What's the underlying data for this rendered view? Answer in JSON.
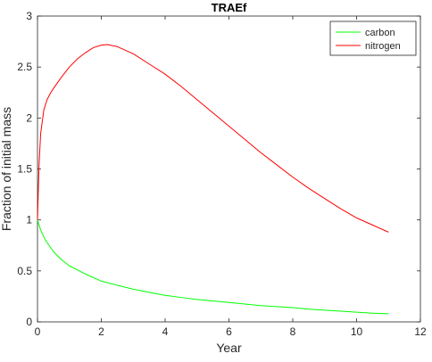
{
  "chart_data": {
    "type": "line",
    "title": "TRAEf",
    "xlabel": "Year",
    "ylabel": "Fraction of initial mass",
    "xlim": [
      0,
      12
    ],
    "ylim": [
      0,
      3
    ],
    "xticks": [
      0,
      2,
      4,
      6,
      8,
      10,
      12
    ],
    "xtick_labels": [
      "0",
      "2",
      "4",
      "6",
      "8",
      "10",
      "12"
    ],
    "yticks": [
      0,
      0.5,
      1,
      1.5,
      2,
      2.5,
      3
    ],
    "ytick_labels": [
      "0",
      "0.5",
      "1",
      "1.5",
      "2",
      "2.5",
      "3"
    ],
    "grid": false,
    "legend": {
      "placement": "top-right"
    },
    "series": [
      {
        "name": "carbon",
        "color": "#00ff00",
        "x": [
          0,
          0.1,
          0.25,
          0.5,
          0.75,
          1,
          1.5,
          2,
          2.5,
          3,
          3.5,
          4,
          4.5,
          5,
          5.5,
          6,
          6.5,
          7,
          7.5,
          8,
          8.5,
          9,
          9.5,
          10,
          10.5,
          11
        ],
        "y": [
          1.0,
          0.9,
          0.8,
          0.69,
          0.61,
          0.55,
          0.47,
          0.4,
          0.36,
          0.32,
          0.29,
          0.26,
          0.24,
          0.22,
          0.205,
          0.19,
          0.175,
          0.16,
          0.15,
          0.14,
          0.125,
          0.115,
          0.105,
          0.095,
          0.085,
          0.08
        ]
      },
      {
        "name": "nitrogen",
        "color": "#ff0000",
        "x": [
          0,
          0.05,
          0.1,
          0.2,
          0.3,
          0.4,
          0.5,
          0.75,
          1,
          1.25,
          1.5,
          1.75,
          2,
          2.2,
          2.5,
          3,
          3.5,
          4,
          4.5,
          5,
          5.5,
          6,
          6.5,
          7,
          7.5,
          8,
          8.5,
          9,
          9.5,
          10,
          10.5,
          11
        ],
        "y": [
          1.0,
          1.55,
          1.85,
          2.08,
          2.18,
          2.24,
          2.29,
          2.4,
          2.5,
          2.58,
          2.64,
          2.69,
          2.715,
          2.72,
          2.7,
          2.63,
          2.53,
          2.43,
          2.31,
          2.18,
          2.05,
          1.92,
          1.79,
          1.66,
          1.54,
          1.42,
          1.31,
          1.21,
          1.11,
          1.02,
          0.95,
          0.88
        ]
      }
    ]
  }
}
